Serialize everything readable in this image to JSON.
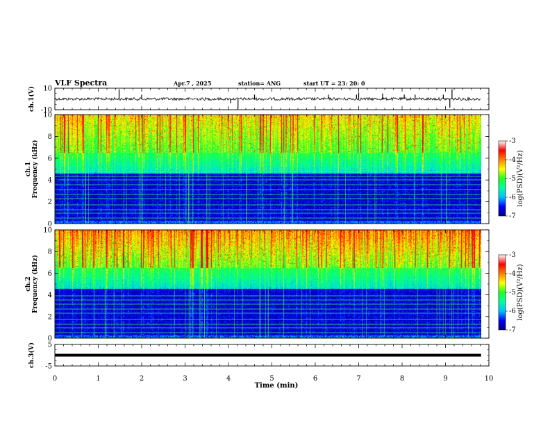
{
  "header": {
    "title": "VLF Spectra",
    "date": "Apr.7  , 2025",
    "station": "station= ANG",
    "start_ut": "start  UT  =   23: 20: 0"
  },
  "chart_data": [
    {
      "type": "line",
      "name": "ch1-waveform",
      "ylabel": "ch.1(V)",
      "ylim": [
        -10,
        10
      ],
      "ytick_labels": [
        "10",
        "-10"
      ],
      "baseline": 0,
      "spikes": [
        {
          "x": 1.48,
          "y": 9
        },
        {
          "x": 2.0,
          "y": 4
        },
        {
          "x": 4.05,
          "y": -4
        },
        {
          "x": 4.22,
          "y": -9
        },
        {
          "x": 4.6,
          "y": 4
        },
        {
          "x": 6.3,
          "y": 4
        },
        {
          "x": 6.95,
          "y": 4
        },
        {
          "x": 7.0,
          "y": 6
        },
        {
          "x": 7.55,
          "y": 5
        },
        {
          "x": 8.05,
          "y": 4
        },
        {
          "x": 8.3,
          "y": 4
        },
        {
          "x": 8.95,
          "y": 4
        },
        {
          "x": 9.1,
          "y": -8
        },
        {
          "x": 9.15,
          "y": 9
        }
      ]
    },
    {
      "type": "heatmap",
      "name": "ch1-spectrogram",
      "ylabel": "ch.1\nFrequency (kHz)",
      "ylim": [
        0,
        10
      ],
      "ytick_labels": [
        "0",
        "2",
        "4",
        "6",
        "8",
        "10"
      ],
      "data_x_max_min": 9.82,
      "horizontal_lines_khz": [
        0.5,
        0.95,
        1.3,
        1.75,
        2.3,
        2.7,
        3.15,
        3.55,
        4.0,
        4.35,
        4.75
      ],
      "colorbar": {
        "label": "log(PSD)(V²/Hz)",
        "range": [
          -7,
          -3
        ],
        "tick_labels": [
          "-3",
          "-4",
          "-5",
          "-6",
          "-7"
        ],
        "colormap": [
          "#000080",
          "#0000ff",
          "#00c0ff",
          "#00ffa0",
          "#20ff20",
          "#ffff00",
          "#ff8000",
          "#ff0000",
          "#ffffff"
        ]
      }
    },
    {
      "type": "heatmap",
      "name": "ch2-spectrogram",
      "ylabel": "ch.2\nFrequency (kHz)",
      "ylim": [
        0,
        10
      ],
      "ytick_labels": [
        "0",
        "2",
        "4",
        "6",
        "8",
        "10"
      ],
      "data_x_max_min": 9.82,
      "horizontal_lines_khz": [
        0.5,
        0.95,
        1.3,
        1.75,
        2.3,
        2.7,
        3.15,
        3.55,
        3.9
      ],
      "colorbar": {
        "label": "log(PSD)(V²/Hz)",
        "range": [
          -7,
          -3
        ],
        "tick_labels": [
          "-3",
          "-4",
          "-5",
          "-6",
          "-7"
        ],
        "colormap": [
          "#000080",
          "#0000ff",
          "#00c0ff",
          "#00ffa0",
          "#20ff20",
          "#ffff00",
          "#ff8000",
          "#ff0000",
          "#ffffff"
        ]
      }
    },
    {
      "type": "line",
      "name": "ch3-waveform",
      "ylabel": "ch.3(V)",
      "ylim": [
        -5,
        5
      ],
      "ytick_labels": [
        "5",
        "-5"
      ],
      "baseline": 0
    }
  ],
  "x_axis": {
    "xlabel": "Time  (min)",
    "xlim": [
      0,
      10
    ],
    "tick_labels": [
      "0",
      "1",
      "2",
      "3",
      "4",
      "5",
      "6",
      "7",
      "8",
      "9",
      "10"
    ]
  }
}
